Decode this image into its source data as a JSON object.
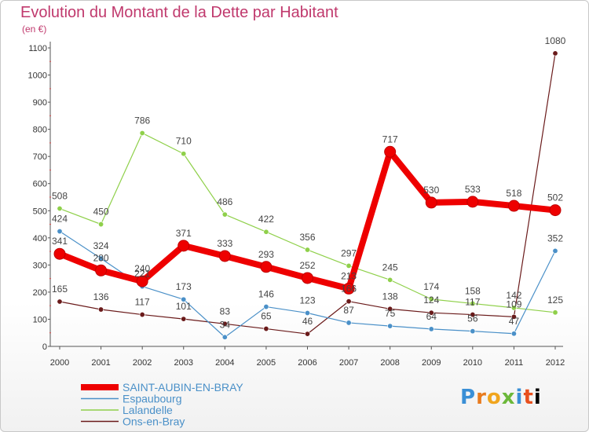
{
  "chart_data": {
    "type": "line",
    "title": "Evolution du Montant de la Dette par Habitant",
    "subtitle": "(en €)",
    "xlabel": "",
    "ylabel": "(en €)",
    "ylim": [
      0,
      1100
    ],
    "yticks": [
      0,
      100,
      200,
      300,
      400,
      500,
      600,
      700,
      800,
      900,
      1000,
      1100
    ],
    "categories": [
      "2000",
      "2001",
      "2002",
      "2003",
      "2004",
      "2005",
      "2006",
      "2007",
      "2008",
      "2009",
      "2010",
      "2011",
      "2012"
    ],
    "series": [
      {
        "name": "SAINT-AUBIN-EN-BRAY",
        "color": "#ee0000",
        "values": [
          341,
          280,
          240,
          371,
          333,
          293,
          252,
          213,
          717,
          530,
          533,
          518,
          502
        ],
        "labels": [
          "341",
          "280",
          "240",
          "371",
          "333",
          "293",
          "252",
          "213",
          "717",
          "530",
          "533",
          "518",
          "502"
        ]
      },
      {
        "name": "Espaubourg",
        "color": "#4a90c8",
        "values": [
          424,
          324,
          221,
          173,
          34,
          146,
          123,
          87,
          75,
          64,
          56,
          47,
          352
        ],
        "labels": [
          "424",
          "324",
          "221",
          "173",
          "34",
          "146",
          "123",
          "87",
          "75",
          "64",
          "56",
          "47",
          "352"
        ]
      },
      {
        "name": "Lalandelle",
        "color": "#8fd04a",
        "values": [
          508,
          450,
          786,
          710,
          486,
          422,
          356,
          297,
          245,
          174,
          158,
          142,
          125
        ],
        "labels": [
          "508",
          "450",
          "786",
          "710",
          "486",
          "422",
          "356",
          "297",
          "245",
          "174",
          "158",
          "142",
          "125"
        ]
      },
      {
        "name": "Ons-en-Bray",
        "color": "#6a1a1a",
        "values": [
          165,
          136,
          117,
          101,
          83,
          65,
          46,
          166,
          138,
          124,
          117,
          109,
          1080
        ],
        "labels": [
          "165",
          "136",
          "117",
          "101",
          "83",
          "65",
          "46",
          "166",
          "138",
          "124",
          "117",
          "109",
          "1080"
        ]
      }
    ],
    "legend_position": "bottom-left"
  },
  "logo": {
    "letters": [
      "P",
      "r",
      "o",
      "x",
      "i",
      "t",
      "i"
    ]
  }
}
